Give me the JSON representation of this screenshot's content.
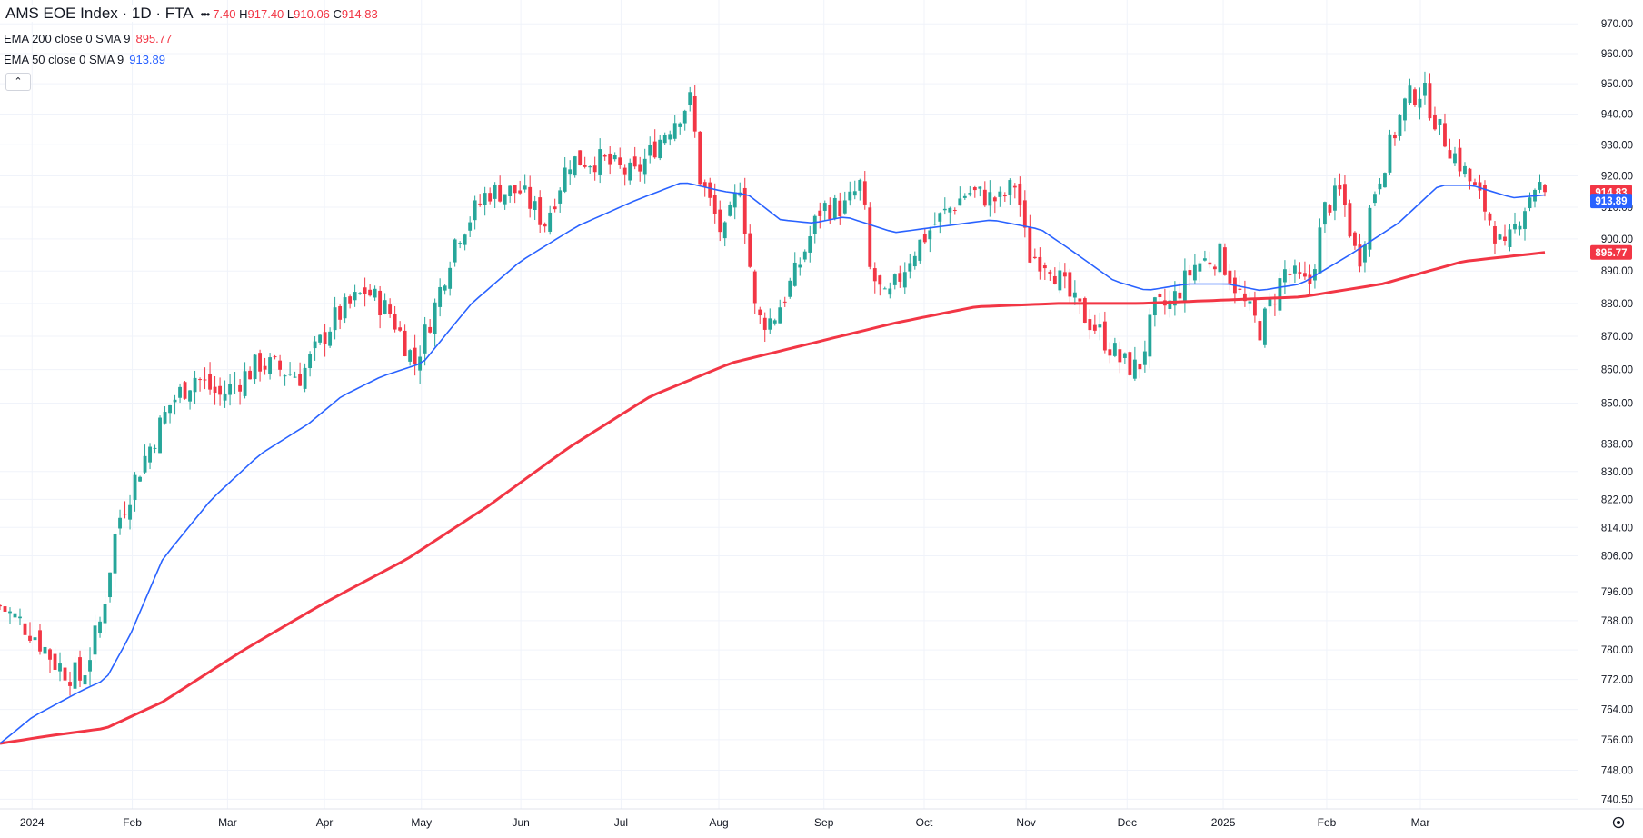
{
  "legend": {
    "symbol": "AMS EOE Index · 1D · FTA",
    "ohlc_open_partial": "7.40",
    "ohlc_high_label": "H",
    "ohlc_high": "917.40",
    "ohlc_low_label": "L",
    "ohlc_low": "910.06",
    "ohlc_close_label": "C",
    "ohlc_close": "914.83",
    "more_icon": "ellipsis-icon",
    "ema200_label": "EMA 200 close 0 SMA 9",
    "ema200_value": "895.77",
    "ema50_label": "EMA 50 close 0 SMA 9",
    "ema50_value": "913.89",
    "collapse_icon": "chevron-up-icon"
  },
  "colors": {
    "up": "#26a69a",
    "down": "#f23645",
    "ema200": "#f23645",
    "ema50": "#2962ff",
    "grid": "#f0f3fa",
    "axis_text": "#131722"
  },
  "chart_data": {
    "type": "candlestick",
    "x_axis_labels": [
      "2024",
      "Feb",
      "Mar",
      "Apr",
      "May",
      "Jun",
      "Jul",
      "Aug",
      "Sep",
      "Oct",
      "Nov",
      "Dec",
      "2025",
      "Feb",
      "Mar"
    ],
    "y_tick_labels": [
      "970.00",
      "960.00",
      "950.00",
      "940.00",
      "930.00",
      "920.00",
      "910.00",
      "900.00",
      "890.00",
      "880.00",
      "870.00",
      "860.00",
      "850.00",
      "838.00",
      "830.00",
      "822.00",
      "814.00",
      "806.00",
      "796.00",
      "788.00",
      "780.00",
      "772.00",
      "764.00",
      "756.00",
      "748.00",
      "740.50"
    ],
    "ylim": [
      738,
      975
    ],
    "scale": "log",
    "grid": true,
    "last_close_label": "914.83",
    "ema50_label": "913.89",
    "ema200_label": "895.77",
    "close_anchors": [
      {
        "t": 0,
        "v": 792
      },
      {
        "t": 0.02,
        "v": 785
      },
      {
        "t": 0.035,
        "v": 776
      },
      {
        "t": 0.05,
        "v": 772
      },
      {
        "t": 0.062,
        "v": 788
      },
      {
        "t": 0.072,
        "v": 815
      },
      {
        "t": 0.085,
        "v": 830
      },
      {
        "t": 0.105,
        "v": 850
      },
      {
        "t": 0.12,
        "v": 858
      },
      {
        "t": 0.135,
        "v": 852
      },
      {
        "t": 0.16,
        "v": 862
      },
      {
        "t": 0.185,
        "v": 858
      },
      {
        "t": 0.205,
        "v": 875
      },
      {
        "t": 0.225,
        "v": 884
      },
      {
        "t": 0.24,
        "v": 877
      },
      {
        "t": 0.255,
        "v": 862
      },
      {
        "t": 0.268,
        "v": 880
      },
      {
        "t": 0.28,
        "v": 900
      },
      {
        "t": 0.3,
        "v": 915
      },
      {
        "t": 0.32,
        "v": 915
      },
      {
        "t": 0.335,
        "v": 905
      },
      {
        "t": 0.35,
        "v": 925
      },
      {
        "t": 0.37,
        "v": 925
      },
      {
        "t": 0.39,
        "v": 920
      },
      {
        "t": 0.41,
        "v": 935
      },
      {
        "t": 0.425,
        "v": 945
      },
      {
        "t": 0.43,
        "v": 920
      },
      {
        "t": 0.445,
        "v": 900
      },
      {
        "t": 0.455,
        "v": 918
      },
      {
        "t": 0.465,
        "v": 875
      },
      {
        "t": 0.475,
        "v": 875
      },
      {
        "t": 0.49,
        "v": 890
      },
      {
        "t": 0.505,
        "v": 910
      },
      {
        "t": 0.52,
        "v": 910
      },
      {
        "t": 0.53,
        "v": 918
      },
      {
        "t": 0.535,
        "v": 890
      },
      {
        "t": 0.545,
        "v": 880
      },
      {
        "t": 0.56,
        "v": 895
      },
      {
        "t": 0.575,
        "v": 905
      },
      {
        "t": 0.595,
        "v": 915
      },
      {
        "t": 0.615,
        "v": 912
      },
      {
        "t": 0.625,
        "v": 918
      },
      {
        "t": 0.632,
        "v": 895
      },
      {
        "t": 0.645,
        "v": 893
      },
      {
        "t": 0.66,
        "v": 880
      },
      {
        "t": 0.675,
        "v": 872
      },
      {
        "t": 0.69,
        "v": 862
      },
      {
        "t": 0.7,
        "v": 860
      },
      {
        "t": 0.71,
        "v": 878
      },
      {
        "t": 0.72,
        "v": 880
      },
      {
        "t": 0.735,
        "v": 892
      },
      {
        "t": 0.75,
        "v": 895
      },
      {
        "t": 0.765,
        "v": 880
      },
      {
        "t": 0.775,
        "v": 872
      },
      {
        "t": 0.79,
        "v": 890
      },
      {
        "t": 0.805,
        "v": 885
      },
      {
        "t": 0.815,
        "v": 910
      },
      {
        "t": 0.825,
        "v": 915
      },
      {
        "t": 0.835,
        "v": 892
      },
      {
        "t": 0.845,
        "v": 915
      },
      {
        "t": 0.855,
        "v": 930
      },
      {
        "t": 0.865,
        "v": 945
      },
      {
        "t": 0.875,
        "v": 948
      },
      {
        "t": 0.885,
        "v": 935
      },
      {
        "t": 0.9,
        "v": 922
      },
      {
        "t": 0.915,
        "v": 908
      },
      {
        "t": 0.925,
        "v": 895
      },
      {
        "t": 0.935,
        "v": 908
      },
      {
        "t": 0.945,
        "v": 918
      },
      {
        "t": 0.95,
        "v": 914.83
      }
    ],
    "ema50_anchors": [
      {
        "t": 0,
        "v": 755
      },
      {
        "t": 0.02,
        "v": 762
      },
      {
        "t": 0.05,
        "v": 769
      },
      {
        "t": 0.065,
        "v": 772
      },
      {
        "t": 0.08,
        "v": 784
      },
      {
        "t": 0.1,
        "v": 805
      },
      {
        "t": 0.13,
        "v": 822
      },
      {
        "t": 0.16,
        "v": 835
      },
      {
        "t": 0.19,
        "v": 844
      },
      {
        "t": 0.21,
        "v": 852
      },
      {
        "t": 0.235,
        "v": 858
      },
      {
        "t": 0.26,
        "v": 862
      },
      {
        "t": 0.29,
        "v": 880
      },
      {
        "t": 0.32,
        "v": 893
      },
      {
        "t": 0.355,
        "v": 904
      },
      {
        "t": 0.39,
        "v": 912
      },
      {
        "t": 0.42,
        "v": 918
      },
      {
        "t": 0.445,
        "v": 915
      },
      {
        "t": 0.46,
        "v": 914
      },
      {
        "t": 0.48,
        "v": 906
      },
      {
        "t": 0.5,
        "v": 905
      },
      {
        "t": 0.52,
        "v": 907
      },
      {
        "t": 0.55,
        "v": 902
      },
      {
        "t": 0.58,
        "v": 904
      },
      {
        "t": 0.61,
        "v": 906
      },
      {
        "t": 0.64,
        "v": 903
      },
      {
        "t": 0.66,
        "v": 896
      },
      {
        "t": 0.685,
        "v": 887
      },
      {
        "t": 0.705,
        "v": 884
      },
      {
        "t": 0.73,
        "v": 886
      },
      {
        "t": 0.755,
        "v": 886
      },
      {
        "t": 0.775,
        "v": 884
      },
      {
        "t": 0.8,
        "v": 886
      },
      {
        "t": 0.83,
        "v": 895
      },
      {
        "t": 0.86,
        "v": 905
      },
      {
        "t": 0.885,
        "v": 917
      },
      {
        "t": 0.905,
        "v": 917
      },
      {
        "t": 0.93,
        "v": 913
      },
      {
        "t": 0.95,
        "v": 913.89
      }
    ],
    "ema200_anchors": [
      {
        "t": 0,
        "v": 755
      },
      {
        "t": 0.03,
        "v": 757
      },
      {
        "t": 0.065,
        "v": 759
      },
      {
        "t": 0.1,
        "v": 766
      },
      {
        "t": 0.15,
        "v": 780
      },
      {
        "t": 0.2,
        "v": 793
      },
      {
        "t": 0.25,
        "v": 805
      },
      {
        "t": 0.3,
        "v": 820
      },
      {
        "t": 0.35,
        "v": 837
      },
      {
        "t": 0.4,
        "v": 852
      },
      {
        "t": 0.45,
        "v": 862
      },
      {
        "t": 0.5,
        "v": 868
      },
      {
        "t": 0.55,
        "v": 874
      },
      {
        "t": 0.6,
        "v": 879
      },
      {
        "t": 0.65,
        "v": 880
      },
      {
        "t": 0.7,
        "v": 880
      },
      {
        "t": 0.75,
        "v": 881
      },
      {
        "t": 0.8,
        "v": 882
      },
      {
        "t": 0.85,
        "v": 886
      },
      {
        "t": 0.9,
        "v": 893
      },
      {
        "t": 0.95,
        "v": 895.77
      }
    ]
  }
}
